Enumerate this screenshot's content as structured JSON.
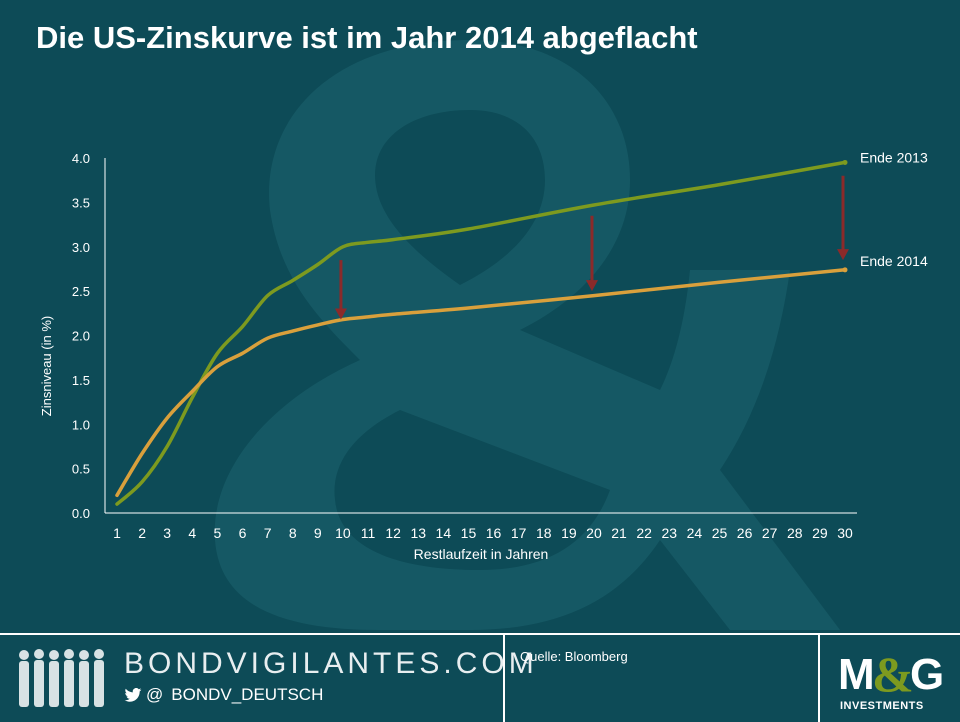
{
  "title": "Die US-Zinskurve ist im Jahr 2014 abgeflacht",
  "footer": {
    "brand_name": "BONDVIGILANTES.COM",
    "at_sign": "@",
    "handle": "BONDV_DEUTSCH",
    "source": "Quelle: Bloomberg",
    "logo_main": "M&G",
    "logo_sub": "INVESTMENTS"
  },
  "colors": {
    "background": "#0d4b57",
    "series_2013": "#7d9a1f",
    "series_2014": "#d9a03c",
    "arrow": "#8b2a2a",
    "logo_ampersand": "#7d9a1f"
  },
  "chart_data": {
    "type": "line",
    "title": "Die US-Zinskurve ist im Jahr 2014 abgeflacht",
    "xlabel": "Restlaufzeit  in Jahren",
    "ylabel": "Zinsniveau  (in %)",
    "xlim": [
      1,
      30
    ],
    "ylim": [
      0,
      4
    ],
    "yticks": [
      "0.0",
      "0.5",
      "1.0",
      "1.5",
      "2.0",
      "2.5",
      "3.0",
      "3.5",
      "4.0"
    ],
    "xticks": [
      "1",
      "2",
      "3",
      "4",
      "5",
      "6",
      "7",
      "8",
      "9",
      "10",
      "11",
      "12",
      "13",
      "14",
      "15",
      "16",
      "17",
      "18",
      "19",
      "20",
      "21",
      "22",
      "23",
      "24",
      "25",
      "26",
      "27",
      "28",
      "29",
      "30"
    ],
    "grid": false,
    "series": [
      {
        "name": "Ende 2013",
        "color": "#7d9a1f",
        "x": [
          1,
          2,
          3,
          4,
          5,
          6,
          7,
          8,
          9,
          10,
          11,
          12,
          15,
          20,
          25,
          30
        ],
        "values": [
          0.1,
          0.35,
          0.75,
          1.3,
          1.8,
          2.1,
          2.45,
          2.62,
          2.8,
          3.0,
          3.05,
          3.08,
          3.2,
          3.47,
          3.7,
          3.95
        ]
      },
      {
        "name": "Ende 2014",
        "color": "#d9a03c",
        "x": [
          1,
          2,
          3,
          4,
          5,
          6,
          7,
          8,
          9,
          10,
          11,
          12,
          15,
          20,
          25,
          30
        ],
        "values": [
          0.2,
          0.67,
          1.07,
          1.37,
          1.65,
          1.8,
          1.97,
          2.05,
          2.12,
          2.18,
          2.21,
          2.24,
          2.31,
          2.45,
          2.6,
          2.74
        ]
      }
    ],
    "arrows": [
      {
        "x": 10,
        "from": 2.85,
        "to": 2.18
      },
      {
        "x": 20,
        "from": 3.35,
        "to": 2.5
      },
      {
        "x": 30,
        "from": 3.8,
        "to": 2.85
      }
    ]
  }
}
